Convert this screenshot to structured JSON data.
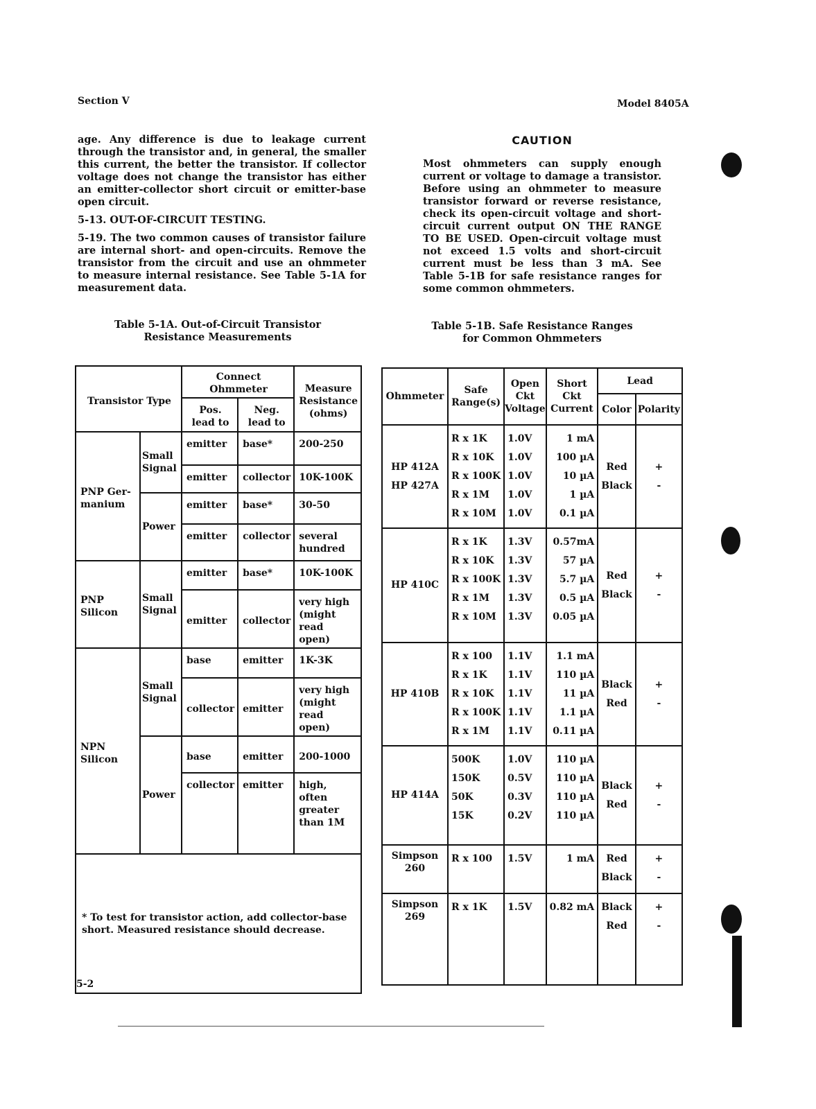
{
  "header": {
    "section": "Section V",
    "model": "Model 8405A"
  },
  "left_text": {
    "p1": "age. Any difference is due to leakage current through the transistor and, in general, the smaller this current, the better the transistor. If collector voltage does not change the transistor has either an emitter-collector short circuit or emitter-base open circuit.",
    "heading": "5-13. OUT-OF-CIRCUIT TESTING.",
    "p2": "5-19. The two common causes of transistor failure are internal short- and open-circuits. Remove the transistor from the circuit and use an ohmmeter to measure internal resistance. See Table 5-1A for measurement data."
  },
  "caution": {
    "title": "CAUTION",
    "text": "Most ohmmeters can supply enough current or voltage to damage a transistor. Before using an ohmmeter to measure transistor forward or reverse resistance, check its open-circuit voltage and short-circuit current output ON THE RANGE TO BE USED. Open-circuit voltage must not exceed 1.5 volts and short-circuit current must be less than 3 mA. See Table 5-1B for safe resistance ranges for some common ohmmeters."
  },
  "table_a": {
    "caption1": "Table 5-1A. Out-of-Circuit Transistor",
    "caption2": "Resistance Measurements",
    "headers": {
      "type": "Transistor Type",
      "connect": "Connect Ohmmeter",
      "pos": "Pos. lead to",
      "neg": "Neg. lead to",
      "measure": "Measure Resistance (ohms)"
    },
    "groups": [
      {
        "type": "PNP Ger-manium",
        "sub": [
          {
            "name": "Small Signal",
            "rows": [
              [
                "emitter",
                "base*",
                "200-250"
              ],
              [
                "emitter",
                "collector",
                "10K-100K"
              ]
            ]
          },
          {
            "name": "Power",
            "rows": [
              [
                "emitter",
                "base*",
                "30-50"
              ],
              [
                "emitter",
                "collector",
                "several hundred"
              ]
            ]
          }
        ]
      },
      {
        "type": "PNP Silicon",
        "sub": [
          {
            "name": "Small Signal",
            "rows": [
              [
                "emitter",
                "base*",
                "10K-100K"
              ],
              [
                "emitter",
                "collector",
                "very high (might read open)"
              ]
            ]
          }
        ]
      },
      {
        "type": "NPN Silicon",
        "sub": [
          {
            "name": "Small Signal",
            "rows": [
              [
                "base",
                "emitter",
                "1K-3K"
              ],
              [
                "collector",
                "emitter",
                "very high (might read open)"
              ]
            ]
          },
          {
            "name": "Power",
            "rows": [
              [
                "base",
                "emitter",
                "200-1000"
              ],
              [
                "collector",
                "emitter",
                "high, often greater than 1M"
              ]
            ]
          }
        ]
      }
    ],
    "footnote": "* To test for transistor action, add collector-base short. Measured resistance should decrease."
  },
  "table_b": {
    "caption1": "Table 5-1B. Safe Resistance Ranges",
    "caption2": "for Common Ohmmeters",
    "headers": {
      "ohmmeter": "Ohmmeter",
      "range": "Safe Range(s)",
      "voltage": "Open Ckt Voltage",
      "current": "Short Ckt Current",
      "lead": "Lead",
      "color": "Color",
      "polarity": "Polarity"
    },
    "groups": [
      {
        "ohmmeter": [
          "HP 412A",
          "HP 427A"
        ],
        "ranges": [
          "R x 1K",
          "R x 10K",
          "R x 100K",
          "R x 1M",
          "R x 10M"
        ],
        "voltages": [
          "1.0V",
          "1.0V",
          "1.0V",
          "1.0V",
          "1.0V"
        ],
        "currents": [
          "1 mA",
          "100 µA",
          "10 µA",
          "1 µA",
          "0.1 µA"
        ],
        "colors": [
          "Red",
          "Black"
        ],
        "polarity": [
          "+",
          "-"
        ]
      },
      {
        "ohmmeter": [
          "HP 410C"
        ],
        "ranges": [
          "R x 1K",
          "R x 10K",
          "R x 100K",
          "R x 1M",
          "R x 10M"
        ],
        "voltages": [
          "1.3V",
          "1.3V",
          "1.3V",
          "1.3V",
          "1.3V"
        ],
        "currents": [
          "0.57mA",
          "57 µA",
          "5.7 µA",
          "0.5 µA",
          "0.05 µA"
        ],
        "colors": [
          "Red",
          "Black"
        ],
        "polarity": [
          "+",
          "-"
        ]
      },
      {
        "ohmmeter": [
          "HP 410B"
        ],
        "ranges": [
          "R x 100",
          "R x 1K",
          "R x 10K",
          "R x 100K",
          "R x 1M"
        ],
        "voltages": [
          "1.1V",
          "1.1V",
          "1.1V",
          "1.1V",
          "1.1V"
        ],
        "currents": [
          "1.1 mA",
          "110 µA",
          "11 µA",
          "1.1 µA",
          "0.11 µA"
        ],
        "colors": [
          "Black",
          "Red"
        ],
        "polarity": [
          "+",
          "-"
        ]
      },
      {
        "ohmmeter": [
          "HP 414A"
        ],
        "ranges": [
          "500K",
          "150K",
          "50K",
          "15K"
        ],
        "voltages": [
          "1.0V",
          "0.5V",
          "0.3V",
          "0.2V"
        ],
        "currents": [
          "110 µA",
          "110 µA",
          "110 µA",
          "110 µA"
        ],
        "colors": [
          "Black",
          "Red"
        ],
        "polarity": [
          "+",
          "-"
        ]
      },
      {
        "ohmmeter": [
          "Simpson",
          "260"
        ],
        "ranges": [
          "R x 100"
        ],
        "voltages": [
          "1.5V"
        ],
        "currents": [
          "1 mA"
        ],
        "colors": [
          "Red",
          "Black"
        ],
        "polarity": [
          "+",
          "-"
        ]
      },
      {
        "ohmmeter": [
          "Simpson",
          "269"
        ],
        "ranges": [
          "R x 1K"
        ],
        "voltages": [
          "1.5V"
        ],
        "currents": [
          "0.82 mA"
        ],
        "colors": [
          "Black",
          "Red"
        ],
        "polarity": [
          "+",
          "-"
        ]
      }
    ]
  },
  "footer": {
    "page": "5-2"
  }
}
